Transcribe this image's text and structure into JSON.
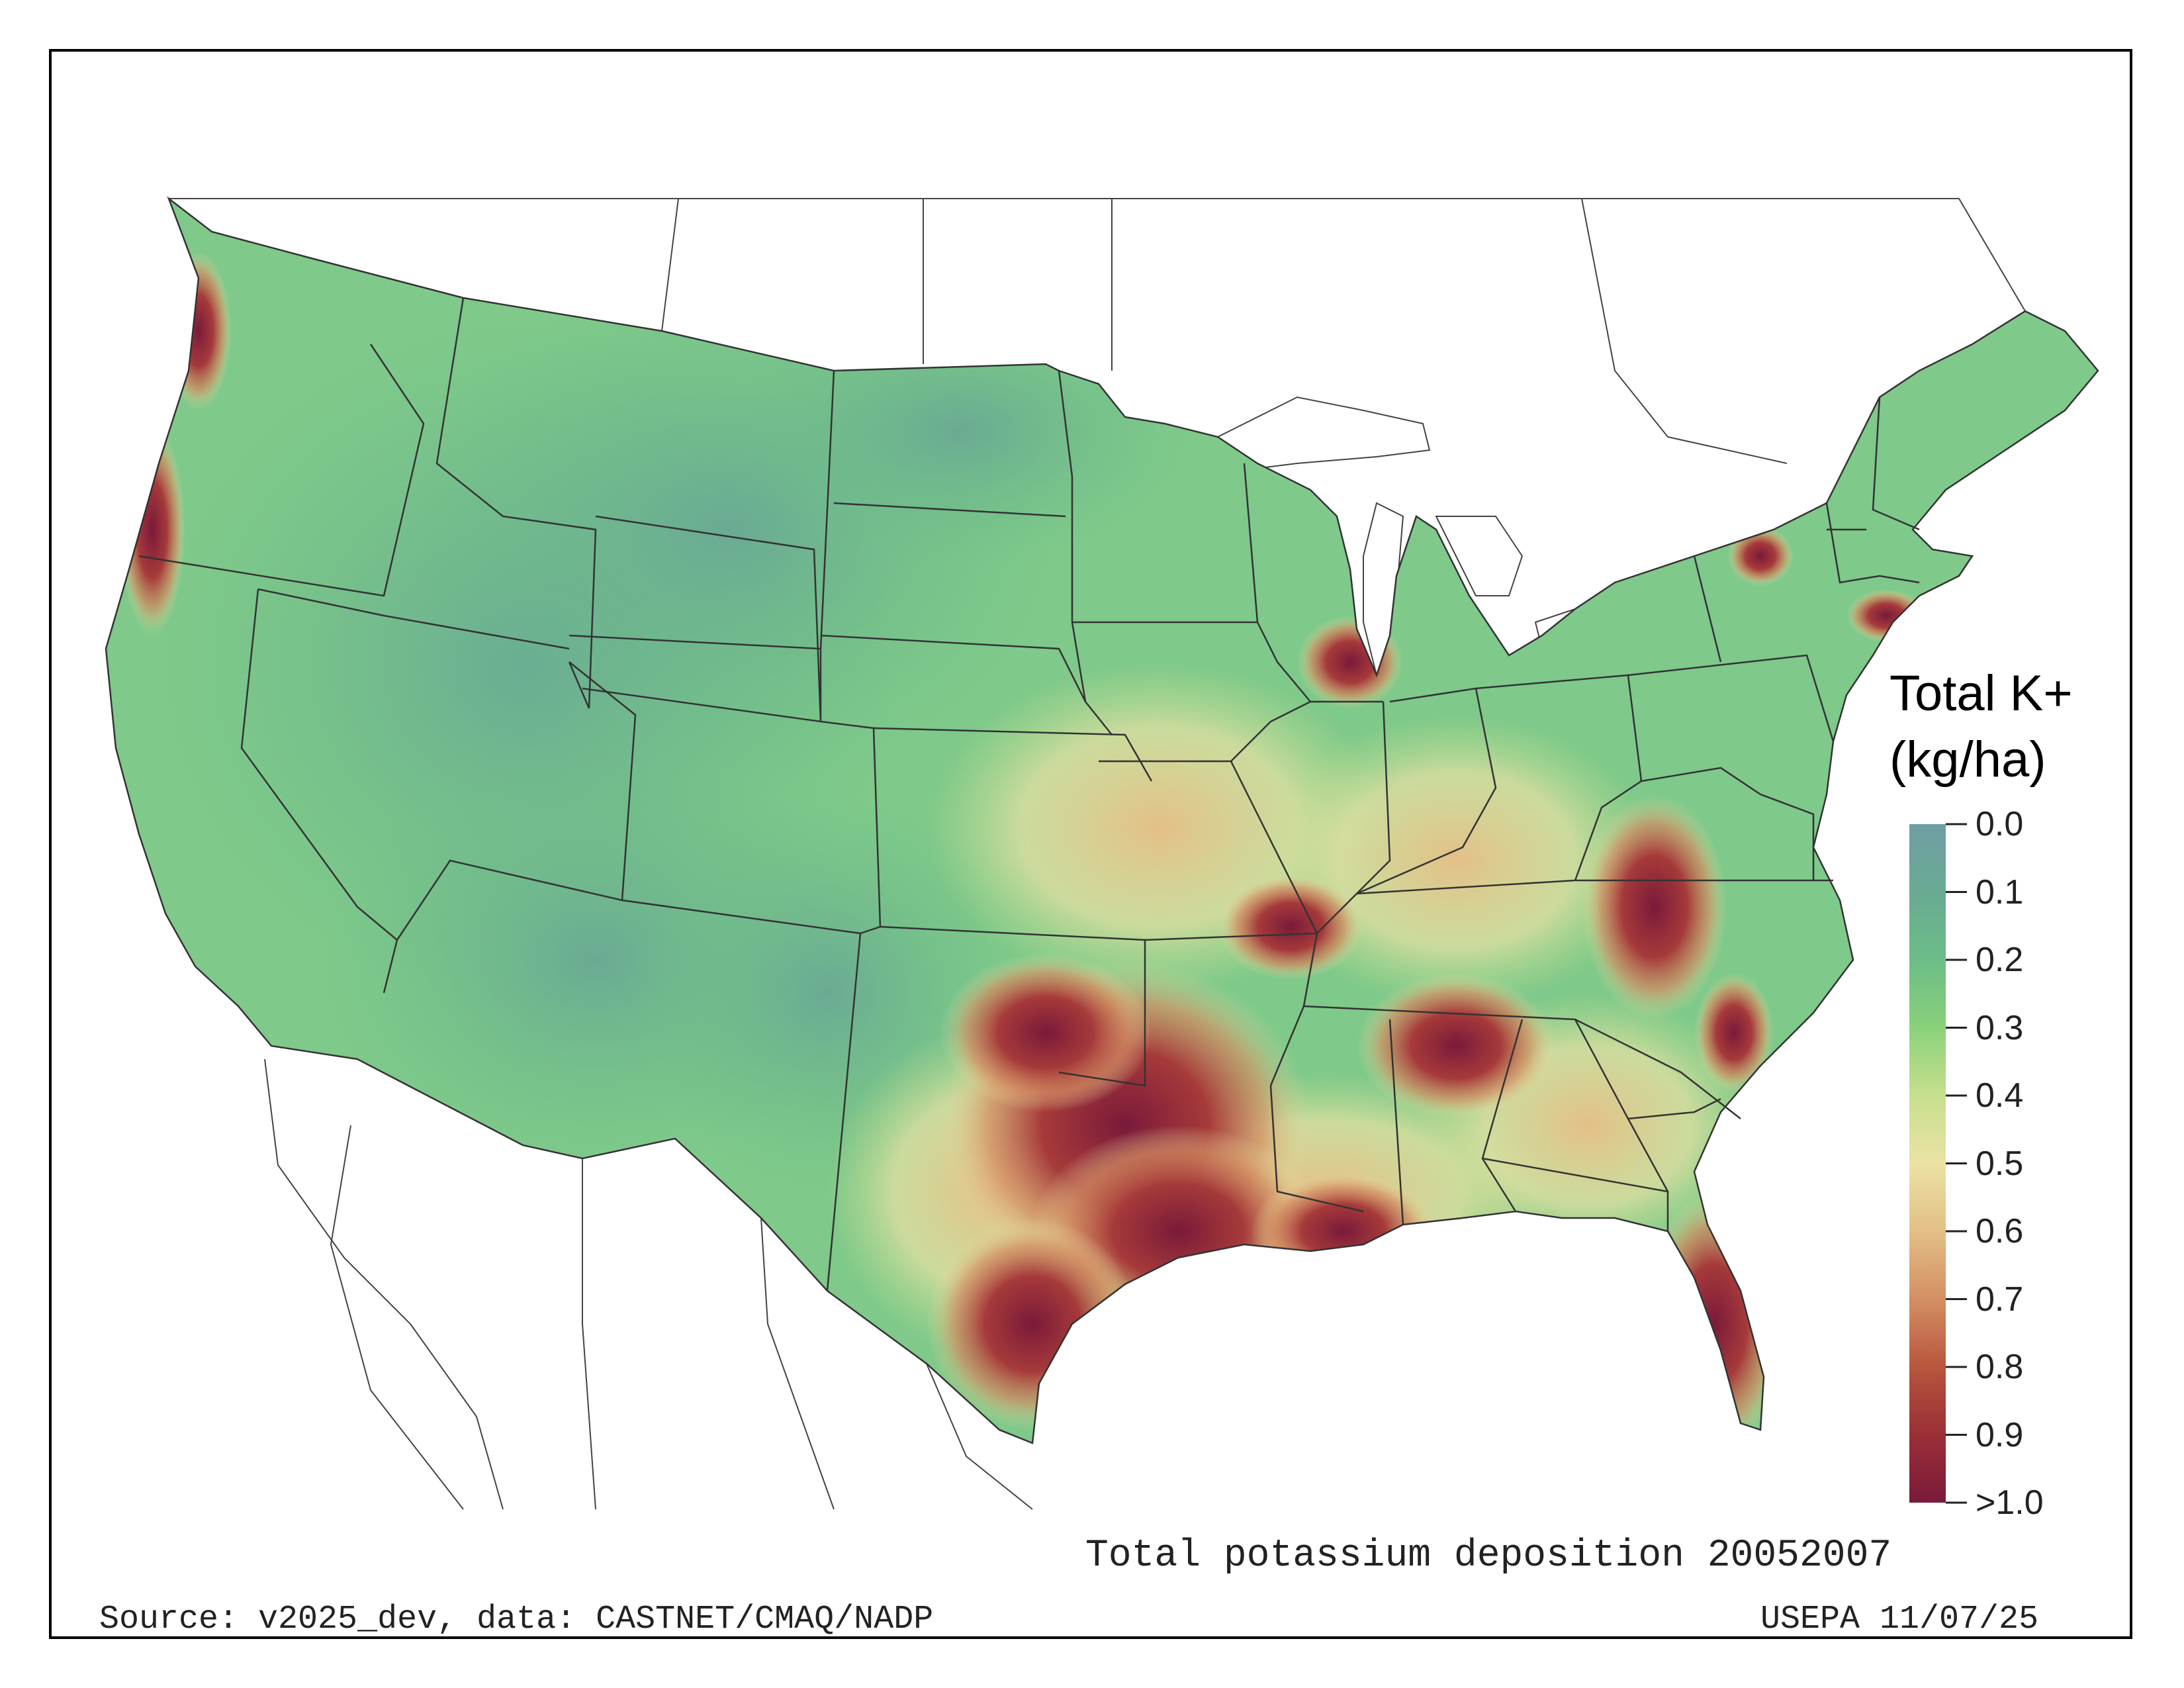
{
  "map": {
    "title": "Total potassium deposition 20052007",
    "source": "Source: v2025_dev, data: CASTNET/CMAQ/NADP",
    "credit": "USEPA 11/07/25"
  },
  "legend": {
    "title_line1": "Total K+",
    "title_line2": "(kg/ha)",
    "ticks": [
      "0.0",
      "0.1",
      "0.2",
      "0.3",
      "0.4",
      "0.5",
      "0.6",
      "0.7",
      "0.8",
      "0.9",
      ">1.0"
    ],
    "colors": [
      "#6f9ea4",
      "#6aaa94",
      "#6cbd88",
      "#8ad17a",
      "#c7df8e",
      "#ebe2a4",
      "#e3bf86",
      "#d48f63",
      "#b8563e",
      "#9a2e36",
      "#7a1a3a"
    ]
  }
}
